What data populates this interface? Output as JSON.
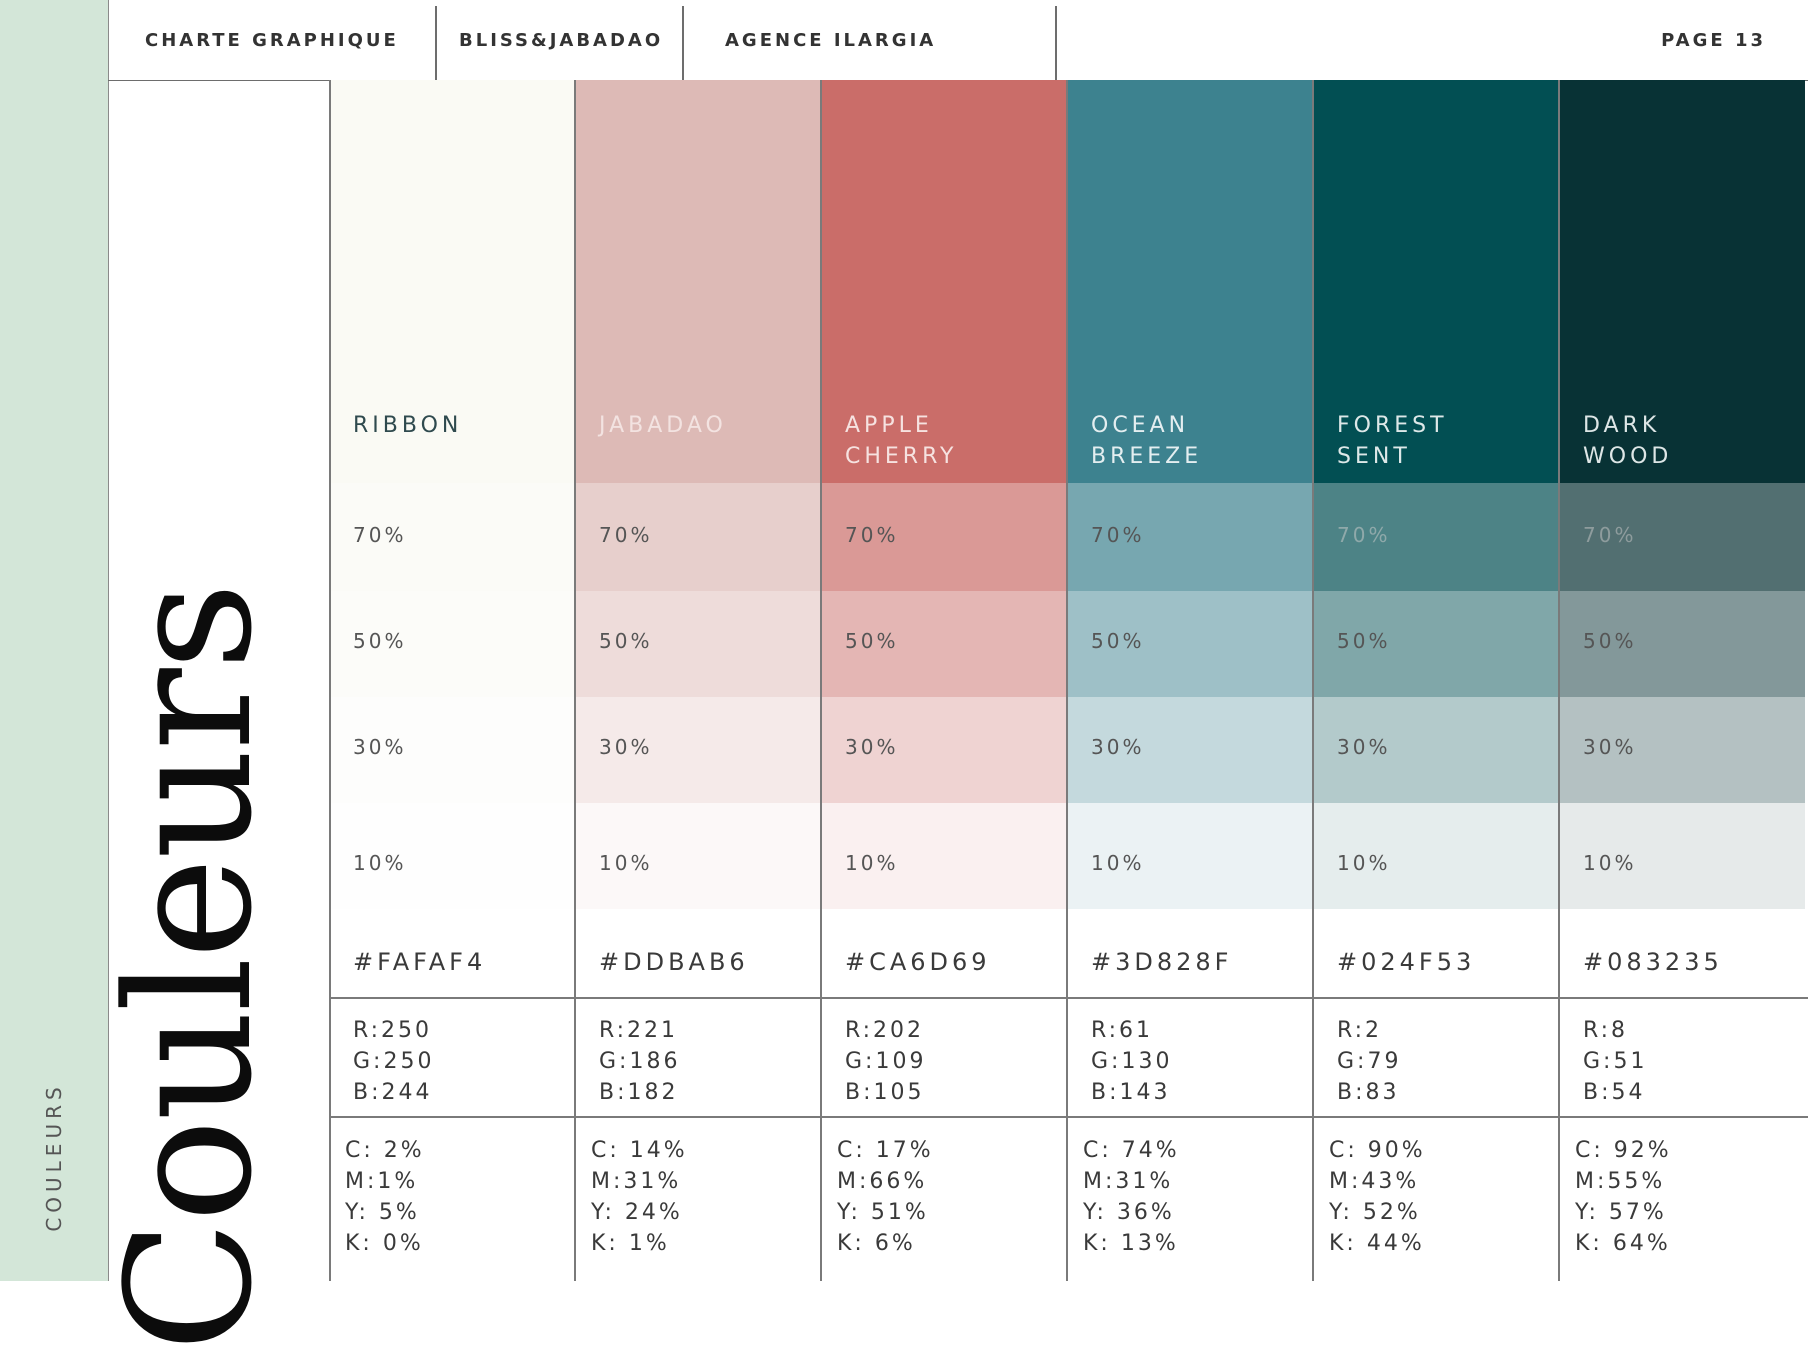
{
  "header": {
    "doc": "CHARTE GRAPHIQUE",
    "brand": "BLISS&JABADAO",
    "agency": "AGENCE ILARGIA",
    "page": "PAGE 13"
  },
  "sidebar": {
    "label": "COULEURS"
  },
  "title": "Couleurs",
  "tint_labels": [
    "70%",
    "50%",
    "30%",
    "10%"
  ],
  "colors": [
    {
      "name": "RIBBON",
      "hex": "#FAFAF4",
      "r": "R:250",
      "g": "G:250",
      "b": "B:244",
      "c": "C: 2%",
      "m": "M:1%",
      "y": "Y: 5%",
      "k": "K: 0%",
      "swatch": "#fafaf4",
      "name_color": "#2f4a4e",
      "tint_text": [
        "#555",
        "#555",
        "#555",
        "#555"
      ]
    },
    {
      "name": "JABADAO",
      "hex": "#DDBAB6",
      "r": "R:221",
      "g": "G:186",
      "b": "B:182",
      "c": "C: 14%",
      "m": "M:31%",
      "y": "Y: 24%",
      "k": "K: 1%",
      "swatch": "#ddbab6",
      "name_color": "#f3e3e1",
      "tint_text": [
        "#555",
        "#555",
        "#555",
        "#555"
      ]
    },
    {
      "name": "APPLE\nCHERRY",
      "hex": "#CA6D69",
      "r": "R:202",
      "g": "G:109",
      "b": "B:105",
      "c": "C: 17%",
      "m": "M:66%",
      "y": "Y: 51%",
      "k": "K: 6%",
      "swatch": "#ca6d69",
      "name_color": "#f6e2e0",
      "tint_text": [
        "#555",
        "#555",
        "#555",
        "#555"
      ]
    },
    {
      "name": "OCEAN\nBREEZE",
      "hex": "#3D828F",
      "r": "R:61",
      "g": "G:130",
      "b": "B:143",
      "c": "C: 74%",
      "m": "M:31%",
      "y": "Y: 36%",
      "k": "K: 13%",
      "swatch": "#3d828f",
      "name_color": "#e4eef0",
      "tint_text": [
        "#555",
        "#555",
        "#555",
        "#555"
      ]
    },
    {
      "name": "FOREST\nSENT",
      "hex": "#024F53",
      "r": "R:2",
      "g": "G:79",
      "b": "B:83",
      "c": "C: 90%",
      "m": "M:43%",
      "y": "Y: 52%",
      "k": "K: 44%",
      "swatch": "#024f53",
      "name_color": "#dde8e8",
      "tint_text": [
        "#8fa9aa",
        "#555",
        "#555",
        "#555"
      ]
    },
    {
      "name": "DARK\nWOOD",
      "hex": "#083235",
      "r": "R:8",
      "g": "G:51",
      "b": "B:54",
      "c": "C: 92%",
      "m": "M:55%",
      "y": "Y: 57%",
      "k": "K: 64%",
      "swatch": "#083235",
      "name_color": "#dde6e6",
      "tint_text": [
        "#8e9c9d",
        "#555",
        "#555",
        "#555"
      ]
    }
  ]
}
